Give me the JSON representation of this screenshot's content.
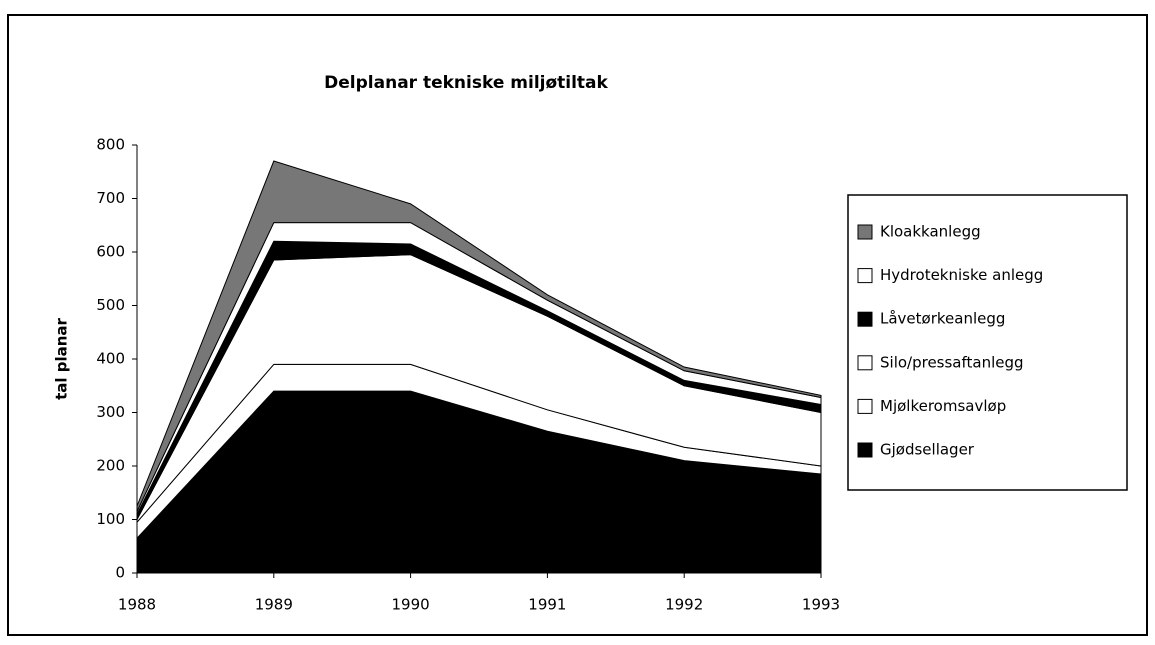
{
  "chart_data": {
    "type": "stacked_area",
    "title": "Delplanar tekniske miljøtiltak",
    "y_label": "tal planar",
    "categories": [
      "1988",
      "1989",
      "1990",
      "1991",
      "1992",
      "1993"
    ],
    "series": [
      {
        "name": "Gjødsellager",
        "color": "#000000",
        "values": [
          65,
          340,
          340,
          265,
          210,
          185
        ]
      },
      {
        "name": "Mjølkeromsavløp",
        "color": "#ffffff",
        "values": [
          30,
          50,
          50,
          40,
          25,
          15
        ]
      },
      {
        "name": "Silo/pressaftanlegg",
        "color": "#ffffff",
        "values": [
          5,
          195,
          205,
          175,
          115,
          100
        ]
      },
      {
        "name": "Låvetørkeanlegg",
        "color": "#000000",
        "values": [
          10,
          35,
          20,
          10,
          10,
          15
        ]
      },
      {
        "name": "Hydrotekniske anlegg",
        "color": "#ffffff",
        "values": [
          5,
          35,
          40,
          20,
          18,
          13
        ]
      },
      {
        "name": "Kloakkanlegg",
        "color": "#777777",
        "values": [
          10,
          115,
          35,
          10,
          7,
          4
        ]
      }
    ],
    "ylim": [
      0,
      800
    ],
    "yticks": [
      0,
      100,
      200,
      300,
      400,
      500,
      600,
      700,
      800
    ],
    "legend": "right"
  }
}
